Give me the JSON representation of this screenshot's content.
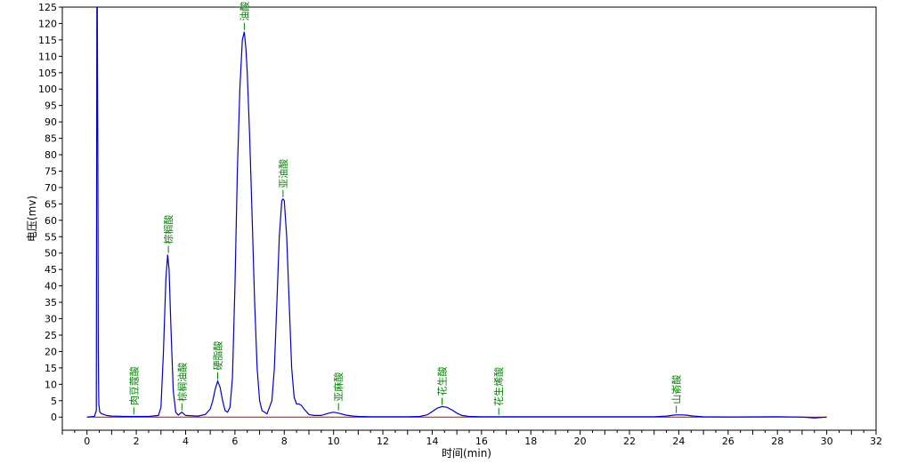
{
  "chart_data": {
    "type": "line",
    "xlabel": "时间(min)",
    "ylabel": "电压(mv)",
    "xlim": [
      -1,
      32
    ],
    "ylim": [
      -4,
      125
    ],
    "x_ticks": [
      0,
      2,
      4,
      6,
      8,
      10,
      12,
      14,
      16,
      18,
      20,
      22,
      24,
      26,
      28,
      30,
      32
    ],
    "y_ticks": [
      0,
      5,
      10,
      15,
      20,
      25,
      30,
      35,
      40,
      45,
      50,
      55,
      60,
      65,
      70,
      75,
      80,
      85,
      90,
      95,
      100,
      105,
      110,
      115,
      120,
      125
    ],
    "grid": false,
    "colors": {
      "signal": "#0000cc",
      "baseline": "#cc0000",
      "labels": "#008000",
      "axis": "#000000"
    },
    "series": [
      {
        "x": [
          0,
          0.3,
          0.38,
          0.4,
          0.42,
          0.44,
          0.46,
          0.48,
          0.52,
          0.6,
          0.8,
          1.0,
          1.5,
          2.0,
          2.5,
          2.9,
          3.0,
          3.1,
          3.2,
          3.27,
          3.33,
          3.4,
          3.5,
          3.6,
          3.7,
          3.85,
          4.0,
          4.5,
          4.8,
          5.0,
          5.1,
          5.2,
          5.3,
          5.4,
          5.5,
          5.6,
          5.7,
          5.8,
          5.9,
          6.0,
          6.1,
          6.2,
          6.3,
          6.38,
          6.45,
          6.5,
          6.6,
          6.7,
          6.8,
          6.9,
          7.0,
          7.1,
          7.3,
          7.5,
          7.6,
          7.7,
          7.8,
          7.9,
          7.95,
          8.0,
          8.1,
          8.2,
          8.3,
          8.4,
          8.5,
          8.6,
          8.7,
          8.8,
          9.0,
          9.2,
          9.5,
          9.8,
          10.0,
          10.2,
          10.5,
          10.8,
          11.0,
          11.5,
          12.0,
          13.0,
          13.5,
          13.8,
          14.0,
          14.2,
          14.4,
          14.6,
          14.8,
          15.0,
          15.2,
          15.5,
          16.0,
          17.0,
          20.0,
          23.0,
          23.5,
          23.8,
          24.0,
          24.3,
          24.6,
          25.0,
          26.0,
          28.0,
          29.0,
          29.5,
          30.0
        ],
        "y": [
          0,
          0.2,
          2,
          128,
          128,
          80,
          20,
          4,
          1.5,
          1,
          0.5,
          0.3,
          0.2,
          0.2,
          0.2,
          0.5,
          3,
          20,
          42,
          49.5,
          45,
          28,
          8,
          1.5,
          0.6,
          1.5,
          0.5,
          0.3,
          0.8,
          2.5,
          5,
          8.5,
          11,
          9,
          5,
          2,
          1.5,
          3,
          12,
          40,
          75,
          100,
          115,
          117.5,
          112,
          105,
          85,
          60,
          35,
          15,
          5,
          2,
          1,
          5,
          15,
          35,
          55,
          66,
          66.5,
          66,
          55,
          35,
          15,
          6,
          4,
          4,
          3.5,
          2.5,
          0.8,
          0.5,
          0.5,
          1.2,
          1.5,
          1.2,
          0.6,
          0.3,
          0.2,
          0.1,
          0.1,
          0.1,
          0.2,
          0.7,
          1.7,
          2.7,
          3.2,
          3,
          2.2,
          1.2,
          0.5,
          0.2,
          0.1,
          0.1,
          0.1,
          0.1,
          0.3,
          0.6,
          0.7,
          0.6,
          0.3,
          0.1,
          0.05,
          0.1,
          0,
          -0.3,
          0
        ]
      }
    ],
    "peaks": [
      {
        "name": "肉豆蔻酸",
        "x": 1.9,
        "y": 0.3
      },
      {
        "name": "棕榈酸",
        "x": 3.3,
        "y": 49.5
      },
      {
        "name": "棕榈油酸",
        "x": 3.85,
        "y": 1.5
      },
      {
        "name": "硬脂酸",
        "x": 5.3,
        "y": 11
      },
      {
        "name": "油酸",
        "x": 6.38,
        "y": 117.5
      },
      {
        "name": "亚油酸",
        "x": 7.95,
        "y": 66.5
      },
      {
        "name": "亚麻酸",
        "x": 10.2,
        "y": 1.5
      },
      {
        "name": "花生酸",
        "x": 14.4,
        "y": 3.2
      },
      {
        "name": "花生烯酸",
        "x": 16.7,
        "y": 0.1
      },
      {
        "name": "山嵛酸",
        "x": 23.9,
        "y": 0.7
      }
    ]
  }
}
